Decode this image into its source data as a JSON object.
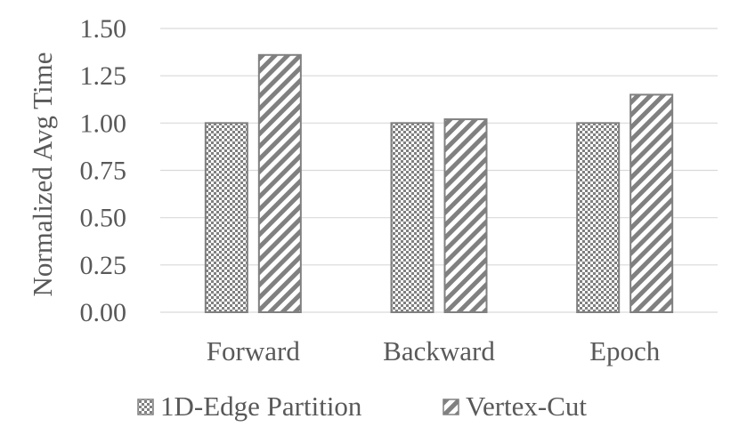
{
  "chart_data": {
    "type": "bar",
    "title": "",
    "xlabel": "",
    "ylabel": "Normalized Avg Time",
    "categories": [
      "Forward",
      "Backward",
      "Epoch"
    ],
    "series": [
      {
        "name": "1D-Edge Partition",
        "values": [
          1.0,
          1.0,
          1.0
        ],
        "pattern": "checker",
        "color": "#808080"
      },
      {
        "name": "Vertex-Cut",
        "values": [
          1.36,
          1.02,
          1.15
        ],
        "pattern": "diagonal-stripes",
        "color": "#808080"
      }
    ],
    "ylim": [
      0,
      1.5
    ],
    "yticks": [
      "0.00",
      "0.25",
      "0.50",
      "0.75",
      "1.00",
      "1.25",
      "1.50"
    ],
    "grid": true,
    "legend_position": "bottom",
    "colors": {
      "gridline": "#d9d9d9",
      "bar_stroke": "#808080",
      "text": "#595959"
    }
  }
}
